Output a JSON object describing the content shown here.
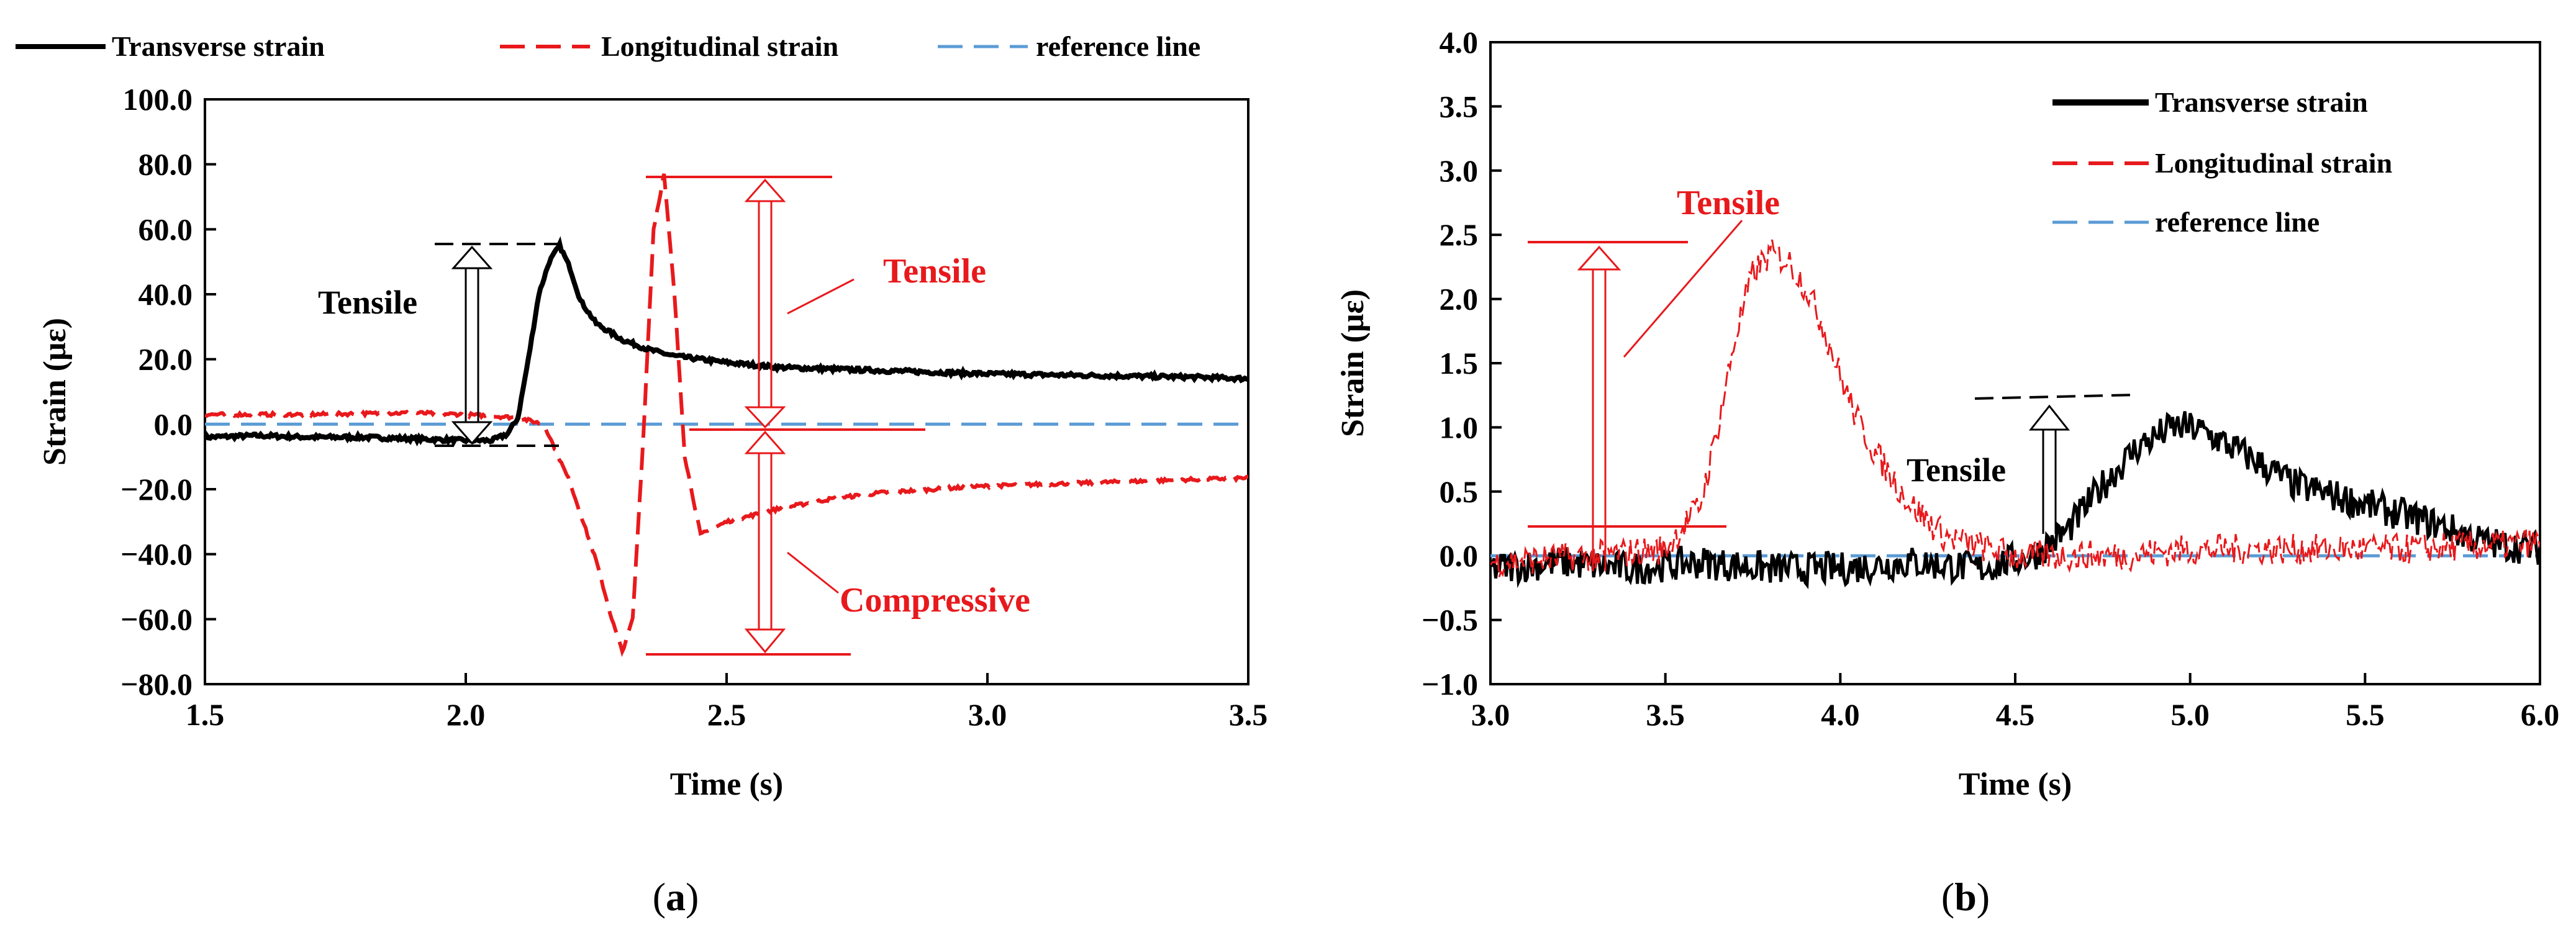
{
  "colors": {
    "transverse": "#000000",
    "longitudinal": "#e8191c",
    "reference": "#5b9bd5",
    "annotation_red": "#e8191c",
    "annotation_black": "#000000"
  },
  "chart_data": [
    {
      "panel": "a",
      "type": "line",
      "caption_open": "(",
      "caption_letter": "a",
      "caption_close": ")",
      "xlabel": "Time (s)",
      "ylabel": "Strain (με)",
      "xlim": [
        1.5,
        3.5
      ],
      "ylim": [
        -80,
        100
      ],
      "xticks": [
        "1.5",
        "2.0",
        "2.5",
        "3.0",
        "3.5"
      ],
      "yticks": [
        "−80.0",
        "−60.0",
        "−40.0",
        "−20.0",
        "0.0",
        "20.0",
        "40.0",
        "60.0",
        "80.0",
        "100.0"
      ],
      "legend_position": "top",
      "series": [
        {
          "name": "Transverse strain",
          "style": "solid",
          "x": [
            1.5,
            1.6,
            1.7,
            1.8,
            1.9,
            2.0,
            2.05,
            2.08,
            2.1,
            2.12,
            2.14,
            2.16,
            2.18,
            2.2,
            2.22,
            2.25,
            2.3,
            2.35,
            2.4,
            2.5,
            2.6,
            2.7,
            2.8,
            2.9,
            3.0,
            3.2,
            3.4,
            3.5
          ],
          "y": [
            -4,
            -3.5,
            -4,
            -4,
            -4.5,
            -5,
            -5,
            -3,
            2,
            20,
            40,
            50,
            55,
            48,
            38,
            31,
            26,
            23,
            21,
            19,
            17.5,
            17,
            16.5,
            16,
            15.5,
            15,
            14.5,
            14
          ]
        },
        {
          "name": "Longitudinal strain",
          "style": "dashed",
          "x": [
            1.5,
            1.7,
            1.9,
            2.0,
            2.1,
            2.15,
            2.2,
            2.25,
            2.28,
            2.3,
            2.32,
            2.34,
            2.36,
            2.38,
            2.4,
            2.42,
            2.45,
            2.5,
            2.6,
            2.7,
            2.8,
            3.0,
            3.2,
            3.5
          ],
          "y": [
            3,
            3,
            3.5,
            3,
            2,
            0,
            -18,
            -42,
            -60,
            -70,
            -60,
            -5,
            60,
            77,
            40,
            -10,
            -34,
            -30,
            -26,
            -23,
            -21,
            -19,
            -18,
            -16.5
          ]
        },
        {
          "name": "reference line",
          "style": "dashed",
          "x": [
            1.5,
            3.5
          ],
          "y": [
            0,
            0
          ]
        }
      ],
      "annotations": [
        {
          "text": "Tensile",
          "color": "black"
        },
        {
          "text": "Tensile",
          "color": "red"
        },
        {
          "text": "Compressive",
          "color": "red"
        }
      ]
    },
    {
      "panel": "b",
      "type": "line",
      "caption_open": "(",
      "caption_letter": "b",
      "caption_close": ")",
      "xlabel": "Time (s)",
      "ylabel": "Strain (με)",
      "xlim": [
        3.0,
        6.0
      ],
      "ylim": [
        -1.0,
        4.0
      ],
      "xticks": [
        "3.0",
        "3.5",
        "4.0",
        "4.5",
        "5.0",
        "5.5",
        "6.0"
      ],
      "yticks": [
        "−1.0",
        "−0.5",
        "0.0",
        "0.5",
        "1.0",
        "1.5",
        "2.0",
        "2.5",
        "3.0",
        "3.5",
        "4.0"
      ],
      "legend_position": "top-right",
      "series": [
        {
          "name": "Transverse strain",
          "style": "solid",
          "x": [
            3.0,
            3.2,
            3.4,
            3.6,
            3.8,
            4.0,
            4.2,
            4.4,
            4.55,
            4.65,
            4.75,
            4.85,
            4.95,
            5.0,
            5.05,
            5.15,
            5.3,
            5.5,
            5.7,
            5.85,
            6.0
          ],
          "y": [
            -0.1,
            -0.05,
            -0.1,
            -0.05,
            -0.1,
            -0.1,
            -0.05,
            -0.1,
            0.0,
            0.2,
            0.55,
            0.85,
            1.0,
            1.0,
            0.95,
            0.8,
            0.55,
            0.4,
            0.25,
            0.1,
            0.05
          ]
        },
        {
          "name": "Longitudinal strain",
          "style": "dashed",
          "x": [
            3.0,
            3.3,
            3.5,
            3.6,
            3.65,
            3.7,
            3.75,
            3.8,
            3.85,
            3.9,
            3.95,
            4.0,
            4.05,
            4.1,
            4.2,
            4.3,
            4.5,
            4.8,
            5.0,
            5.3,
            5.6,
            6.0
          ],
          "y": [
            -0.05,
            0.0,
            0.05,
            0.4,
            1.0,
            1.7,
            2.2,
            2.35,
            2.3,
            2.1,
            1.8,
            1.4,
            1.05,
            0.8,
            0.4,
            0.15,
            0.0,
            0.0,
            0.05,
            0.05,
            0.05,
            0.1
          ]
        },
        {
          "name": "reference line",
          "style": "dashed",
          "x": [
            3.0,
            6.0
          ],
          "y": [
            0,
            0
          ]
        }
      ],
      "annotations": [
        {
          "text": "Tensile",
          "color": "red"
        },
        {
          "text": "Tensile",
          "color": "black"
        }
      ]
    }
  ]
}
